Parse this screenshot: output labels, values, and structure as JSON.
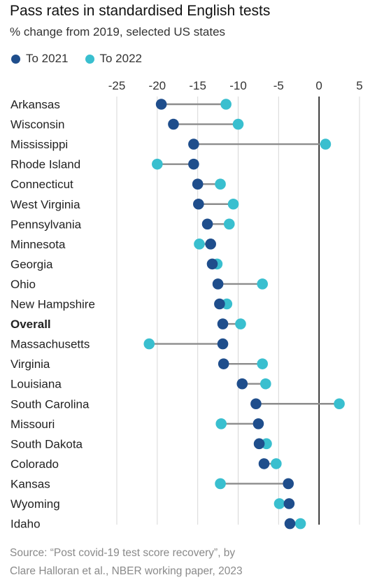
{
  "title": "Pass rates in standardised English tests",
  "subtitle": "% change from 2019, selected US states",
  "legend": [
    {
      "label": "To 2021",
      "color": "#1f4e8c"
    },
    {
      "label": "To 2022",
      "color": "#39bfcf"
    }
  ],
  "source": [
    "Source: “Post covid-19 test score recovery”, by",
    "Clare Halloran et al., NBER working paper, 2023"
  ],
  "chart_data": {
    "type": "dumbbell",
    "xlim": [
      -25,
      5
    ],
    "xticks": [
      -25,
      -20,
      -15,
      -10,
      -5,
      0,
      5
    ],
    "xtick_labels": [
      "-25",
      "-20",
      "-15",
      "-10",
      "-5",
      "0",
      "5"
    ],
    "grid": true,
    "bold_categories": [
      "Overall"
    ],
    "categories": [
      "Arkansas",
      "Wisconsin",
      "Mississippi",
      "Rhode Island",
      "Connecticut",
      "West Virginia",
      "Pennsylvania",
      "Minnesota",
      "Georgia",
      "Ohio",
      "New Hampshire",
      "Overall",
      "Massachusetts",
      "Virginia",
      "Louisiana",
      "South Carolina",
      "Missouri",
      "South Dakota",
      "Colorado",
      "Kansas",
      "Wyoming",
      "Idaho"
    ],
    "series": [
      {
        "name": "To 2021",
        "color": "#1f4e8c",
        "values": [
          -19.5,
          -18.0,
          -15.5,
          -15.5,
          -15.0,
          -14.9,
          -13.8,
          -13.4,
          -13.2,
          -12.5,
          -12.3,
          -11.9,
          -11.9,
          -11.8,
          -9.5,
          -7.8,
          -7.5,
          -7.4,
          -6.8,
          -3.8,
          -3.7,
          -3.6
        ]
      },
      {
        "name": "To 2022",
        "color": "#39bfcf",
        "values": [
          -11.5,
          -10.0,
          0.8,
          -20.0,
          -12.2,
          -10.6,
          -11.1,
          -14.8,
          -12.6,
          -7.0,
          -11.4,
          -9.7,
          -21.0,
          -7.0,
          -6.6,
          2.5,
          -12.1,
          -6.5,
          -5.3,
          -12.2,
          -4.9,
          -2.3
        ]
      }
    ]
  }
}
